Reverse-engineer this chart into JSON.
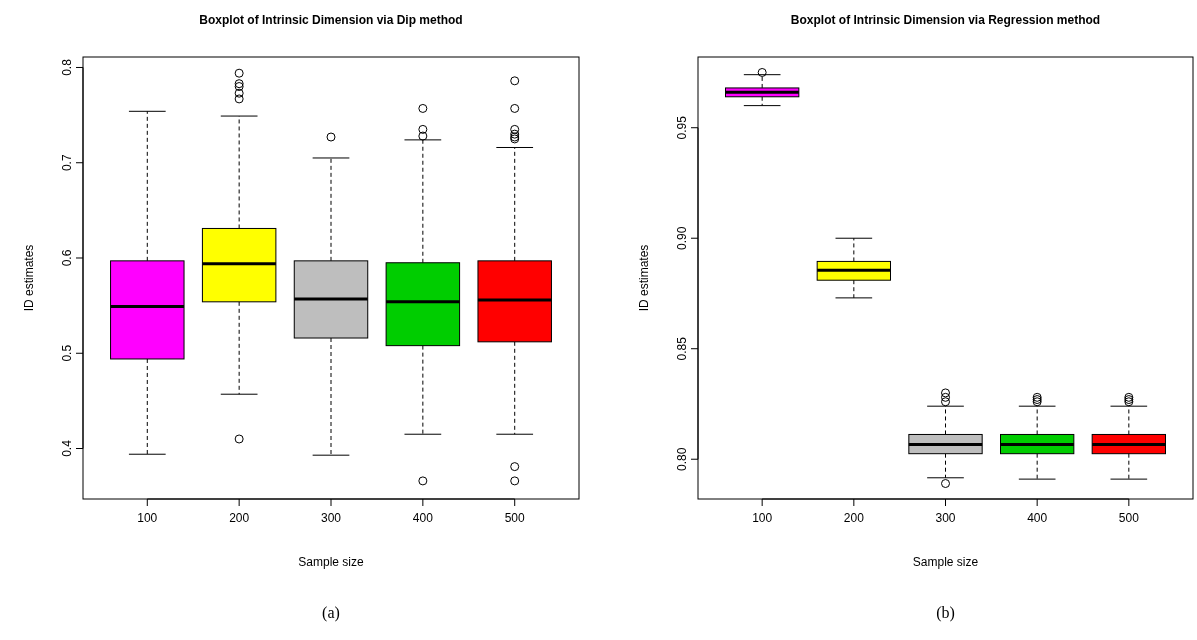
{
  "chart_data": [
    {
      "type": "box",
      "title": "Boxplot of Intrinsic Dimension via Dip method",
      "xlabel": "Sample size",
      "ylabel": "ID estimates",
      "categories": [
        "100",
        "200",
        "300",
        "400",
        "500"
      ],
      "colors": [
        "#ff00ff",
        "#ffff00",
        "#bebebe",
        "#00cd00",
        "#ff0000"
      ],
      "ylim": [
        0.347,
        0.811
      ],
      "yticks": [
        0.4,
        0.5,
        0.6,
        0.7,
        0.8
      ],
      "annotations": [
        "(a)"
      ],
      "boxes": [
        {
          "low": 0.394,
          "q1": 0.494,
          "median": 0.549,
          "q3": 0.597,
          "high": 0.754
        },
        {
          "low": 0.457,
          "q1": 0.554,
          "median": 0.594,
          "q3": 0.631,
          "high": 0.749,
          "outliers": [
            0.41,
            0.767,
            0.773,
            0.78,
            0.783,
            0.794
          ]
        },
        {
          "low": 0.393,
          "q1": 0.516,
          "median": 0.557,
          "q3": 0.597,
          "high": 0.705,
          "outliers": [
            0.727
          ]
        },
        {
          "low": 0.415,
          "q1": 0.508,
          "median": 0.554,
          "q3": 0.595,
          "high": 0.724,
          "outliers": [
            0.757,
            0.735,
            0.728,
            0.366
          ]
        },
        {
          "low": 0.415,
          "q1": 0.512,
          "median": 0.556,
          "q3": 0.597,
          "high": 0.716,
          "outliers": [
            0.786,
            0.757,
            0.735,
            0.73,
            0.727,
            0.725,
            0.381,
            0.366
          ]
        }
      ]
    },
    {
      "type": "box",
      "title": "Boxplot of Intrinsic Dimension via Regression method",
      "xlabel": "Sample size",
      "ylabel": "ID estimates",
      "categories": [
        "100",
        "200",
        "300",
        "400",
        "500"
      ],
      "colors": [
        "#ff00ff",
        "#ffff00",
        "#bebebe",
        "#00cd00",
        "#ff0000"
      ],
      "ylim": [
        0.782,
        0.982
      ],
      "yticks": [
        {
          "value": 0.8,
          "label": "0.80"
        },
        {
          "value": 0.85,
          "label": "0.85"
        },
        {
          "value": 0.9,
          "label": "0.90"
        },
        {
          "value": 0.95,
          "label": "0.95"
        }
      ],
      "annotations": [
        "(b)"
      ],
      "boxes": [
        {
          "low": 0.96,
          "q1": 0.964,
          "median": 0.966,
          "q3": 0.968,
          "high": 0.974,
          "outliers": [
            0.975
          ]
        },
        {
          "low": 0.873,
          "q1": 0.881,
          "median": 0.8855,
          "q3": 0.8895,
          "high": 0.9
        },
        {
          "low": 0.7916,
          "q1": 0.8025,
          "median": 0.8067,
          "q3": 0.8112,
          "high": 0.824,
          "outliers": [
            0.826,
            0.828,
            0.83,
            0.789
          ]
        },
        {
          "low": 0.791,
          "q1": 0.8025,
          "median": 0.8067,
          "q3": 0.8112,
          "high": 0.824,
          "outliers": [
            0.826,
            0.827,
            0.828
          ]
        },
        {
          "low": 0.791,
          "q1": 0.8025,
          "median": 0.8067,
          "q3": 0.8112,
          "high": 0.824,
          "outliers": [
            0.826,
            0.827,
            0.828
          ]
        }
      ]
    }
  ]
}
